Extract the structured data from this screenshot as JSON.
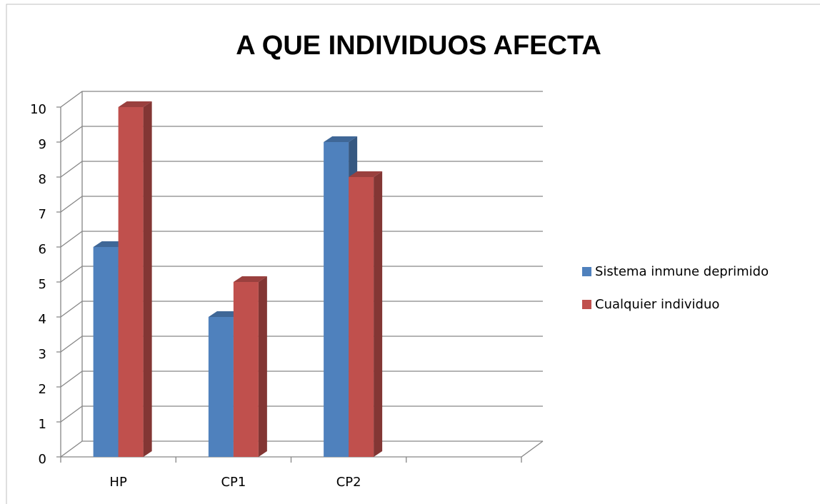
{
  "chart_data": {
    "type": "bar3d",
    "title": "A QUE INDIVIDUOS AFECTA",
    "categories": [
      "HP",
      "CP1",
      "CP2",
      null
    ],
    "series": [
      {
        "name": "Sistema inmune deprimido",
        "color": "#4f81bd",
        "values": [
          6,
          4,
          9,
          null
        ]
      },
      {
        "name": "Cualquier individuo",
        "color": "#c0504d",
        "values": [
          10,
          5,
          8,
          null
        ]
      }
    ],
    "ylim": [
      0,
      10
    ],
    "yticks": [
      0,
      1,
      2,
      3,
      4,
      5,
      6,
      7,
      8,
      9,
      10
    ],
    "grid": true,
    "legend": "right"
  }
}
